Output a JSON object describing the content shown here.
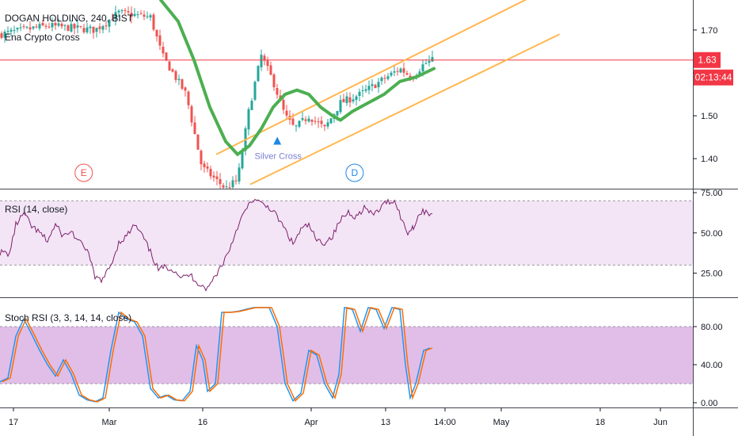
{
  "header": {
    "symbol": "DOGAN HOLDING, 240, BIST",
    "indicator": "Ena Crypto Cross"
  },
  "colors": {
    "up": "#26a69a",
    "down": "#ef5350",
    "ma": "#4caf50",
    "channel": "#ffb74d",
    "rsi": "#7e1f6e",
    "rsi_band": "#f3e5f5",
    "stoch_k": "#2196f3",
    "stoch_d": "#ff6d00",
    "stoch_band": "#e1bee7",
    "price_line": "#f23645",
    "signal_e": "#ef5350",
    "signal_d": "#1e88e5",
    "silver": "#7b7fd4"
  },
  "price_badge": {
    "value": "1.63",
    "countdown": "02:13:44"
  },
  "markers": [
    {
      "label": "E",
      "x": "Feb 28"
    },
    {
      "label": "D",
      "x": "Apr 8"
    }
  ],
  "silver_cross": {
    "label": "Silver Cross",
    "x": "Mar 27",
    "price": 1.44
  },
  "chart_data": [
    {
      "type": "candlestick",
      "title": "DOGAN HOLDING, 240, BIST",
      "ylim": [
        1.33,
        1.77
      ],
      "yticks": [
        "1.70",
        "1.60",
        "1.50",
        "1.40"
      ],
      "last_price": 1.63,
      "series": [
        {
          "name": "Ena Crypto Cross",
          "kind": "ma"
        }
      ],
      "channel": {
        "upper": [
          {
            "x": "Mar 18",
            "y": 1.41
          },
          {
            "x": "May 11",
            "y": 1.81
          }
        ],
        "lower": [
          {
            "x": "Mar 23",
            "y": 1.34
          },
          {
            "x": "May 11",
            "y": 1.69
          }
        ]
      }
    },
    {
      "type": "line",
      "title": "RSI (14, close)",
      "ylim": [
        10,
        77
      ],
      "yticks": [
        "75.00",
        "50.00",
        "25.00"
      ],
      "band": [
        30,
        70
      ],
      "series": [
        {
          "name": "RSI (14, close)"
        }
      ]
    },
    {
      "type": "line",
      "title": "Stoch RSI (3, 3, 14, 14, close)",
      "ylim": [
        -5,
        110
      ],
      "yticks": [
        "80.00",
        "40.00",
        "0.00"
      ],
      "band": [
        20,
        80
      ],
      "series": [
        {
          "name": "K"
        },
        {
          "name": "D"
        }
      ]
    }
  ],
  "time_axis": {
    "labels": [
      {
        "text": "17",
        "x": "Feb 17"
      },
      {
        "text": "Mar",
        "x": "Mar 1"
      },
      {
        "text": "16",
        "x": "Mar 16"
      },
      {
        "text": "Apr",
        "x": "Apr 1"
      },
      {
        "text": "13",
        "x": "Apr 13"
      },
      {
        "text": "May",
        "x": "May 1"
      },
      {
        "text": "18",
        "x": "May 18"
      },
      {
        "text": "Jun",
        "x": "Jun 1"
      }
    ],
    "current": "14:00"
  }
}
